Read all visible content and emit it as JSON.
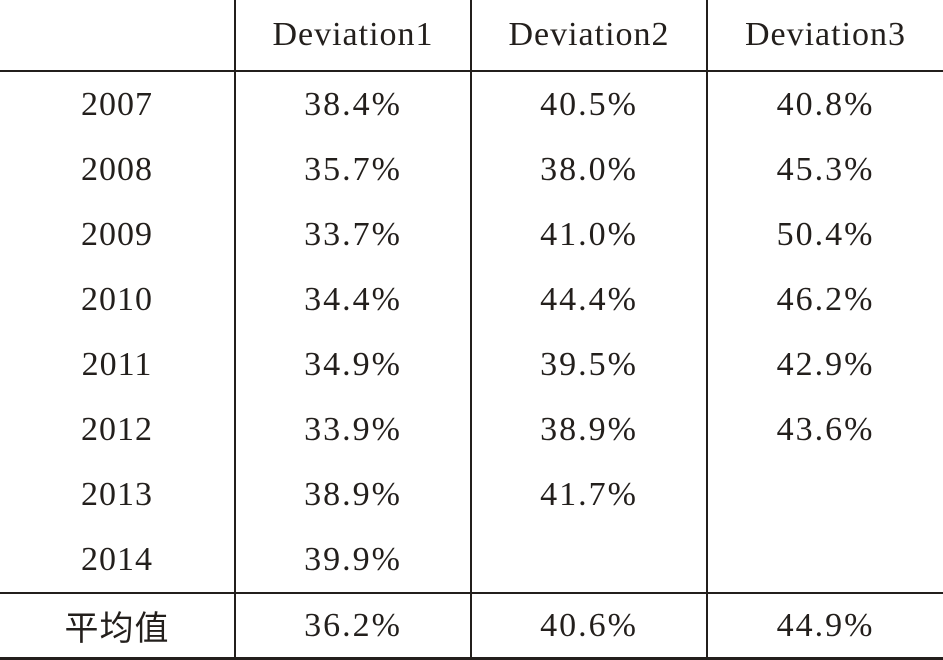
{
  "table": {
    "headers": [
      "",
      "Deviation1",
      "Deviation2",
      "Deviation3"
    ],
    "rows": [
      {
        "year": "2007",
        "d1": "38.4%",
        "d2": "40.5%",
        "d3": "40.8%"
      },
      {
        "year": "2008",
        "d1": "35.7%",
        "d2": "38.0%",
        "d3": "45.3%"
      },
      {
        "year": "2009",
        "d1": "33.7%",
        "d2": "41.0%",
        "d3": "50.4%"
      },
      {
        "year": "2010",
        "d1": "34.4%",
        "d2": "44.4%",
        "d3": "46.2%"
      },
      {
        "year": "2011",
        "d1": "34.9%",
        "d2": "39.5%",
        "d3": "42.9%"
      },
      {
        "year": "2012",
        "d1": "33.9%",
        "d2": "38.9%",
        "d3": "43.6%"
      },
      {
        "year": "2013",
        "d1": "38.9%",
        "d2": "41.7%",
        "d3": ""
      },
      {
        "year": "2014",
        "d1": "39.9%",
        "d2": "",
        "d3": ""
      }
    ],
    "footer": {
      "label": "平均值",
      "d1": "36.2%",
      "d2": "40.6%",
      "d3": "44.9%"
    }
  }
}
